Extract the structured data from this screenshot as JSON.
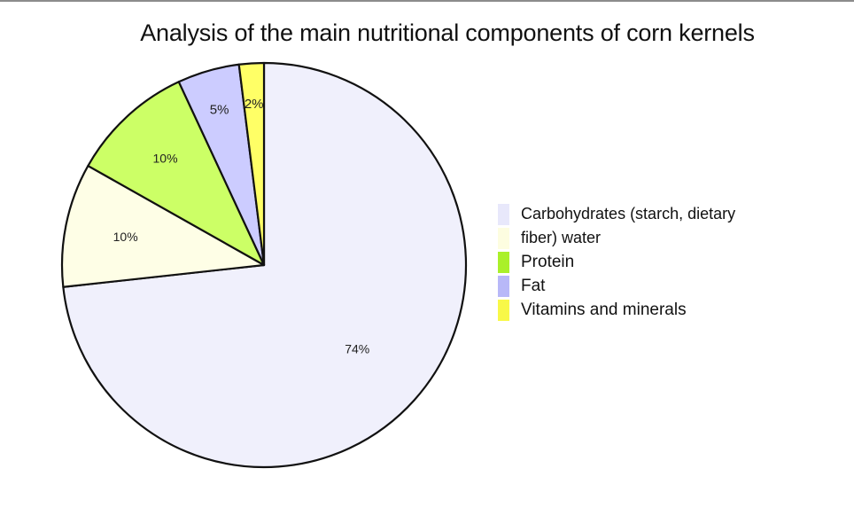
{
  "chart_data": {
    "type": "pie",
    "title": "Analysis of the main nutritional components of corn kernels",
    "start_angle_deg": 0,
    "direction": "clockwise",
    "slices": [
      {
        "label": "Carbohydrates (starch, dietary fiber)",
        "value": 74,
        "display": "74%",
        "color": "#f0f0fc"
      },
      {
        "label": "water",
        "value": 10,
        "display": "10%",
        "color": "#fefee6"
      },
      {
        "label": "Protein",
        "value": 10,
        "display": "10%",
        "color": "#ccff66"
      },
      {
        "label": "Fat",
        "value": 5,
        "display": "5%",
        "color": "#ccccff"
      },
      {
        "label": "Vitamins and minerals",
        "value": 2,
        "display": "2%",
        "color": "#ffff66"
      }
    ],
    "legend_position": "right"
  },
  "legend": {
    "rows": [
      {
        "text": "Carbohydrates (starch, dietary",
        "color": "#e8e8fb",
        "small": true
      },
      {
        "text": "fiber) water",
        "color": "#fdfde0",
        "small": true
      },
      {
        "text": "Protein",
        "color": "#aaf02a",
        "small": false
      },
      {
        "text": "Fat",
        "color": "#b8b8f8",
        "small": false
      },
      {
        "text": "Vitamins and minerals",
        "color": "#f8f848",
        "small": false
      }
    ]
  }
}
